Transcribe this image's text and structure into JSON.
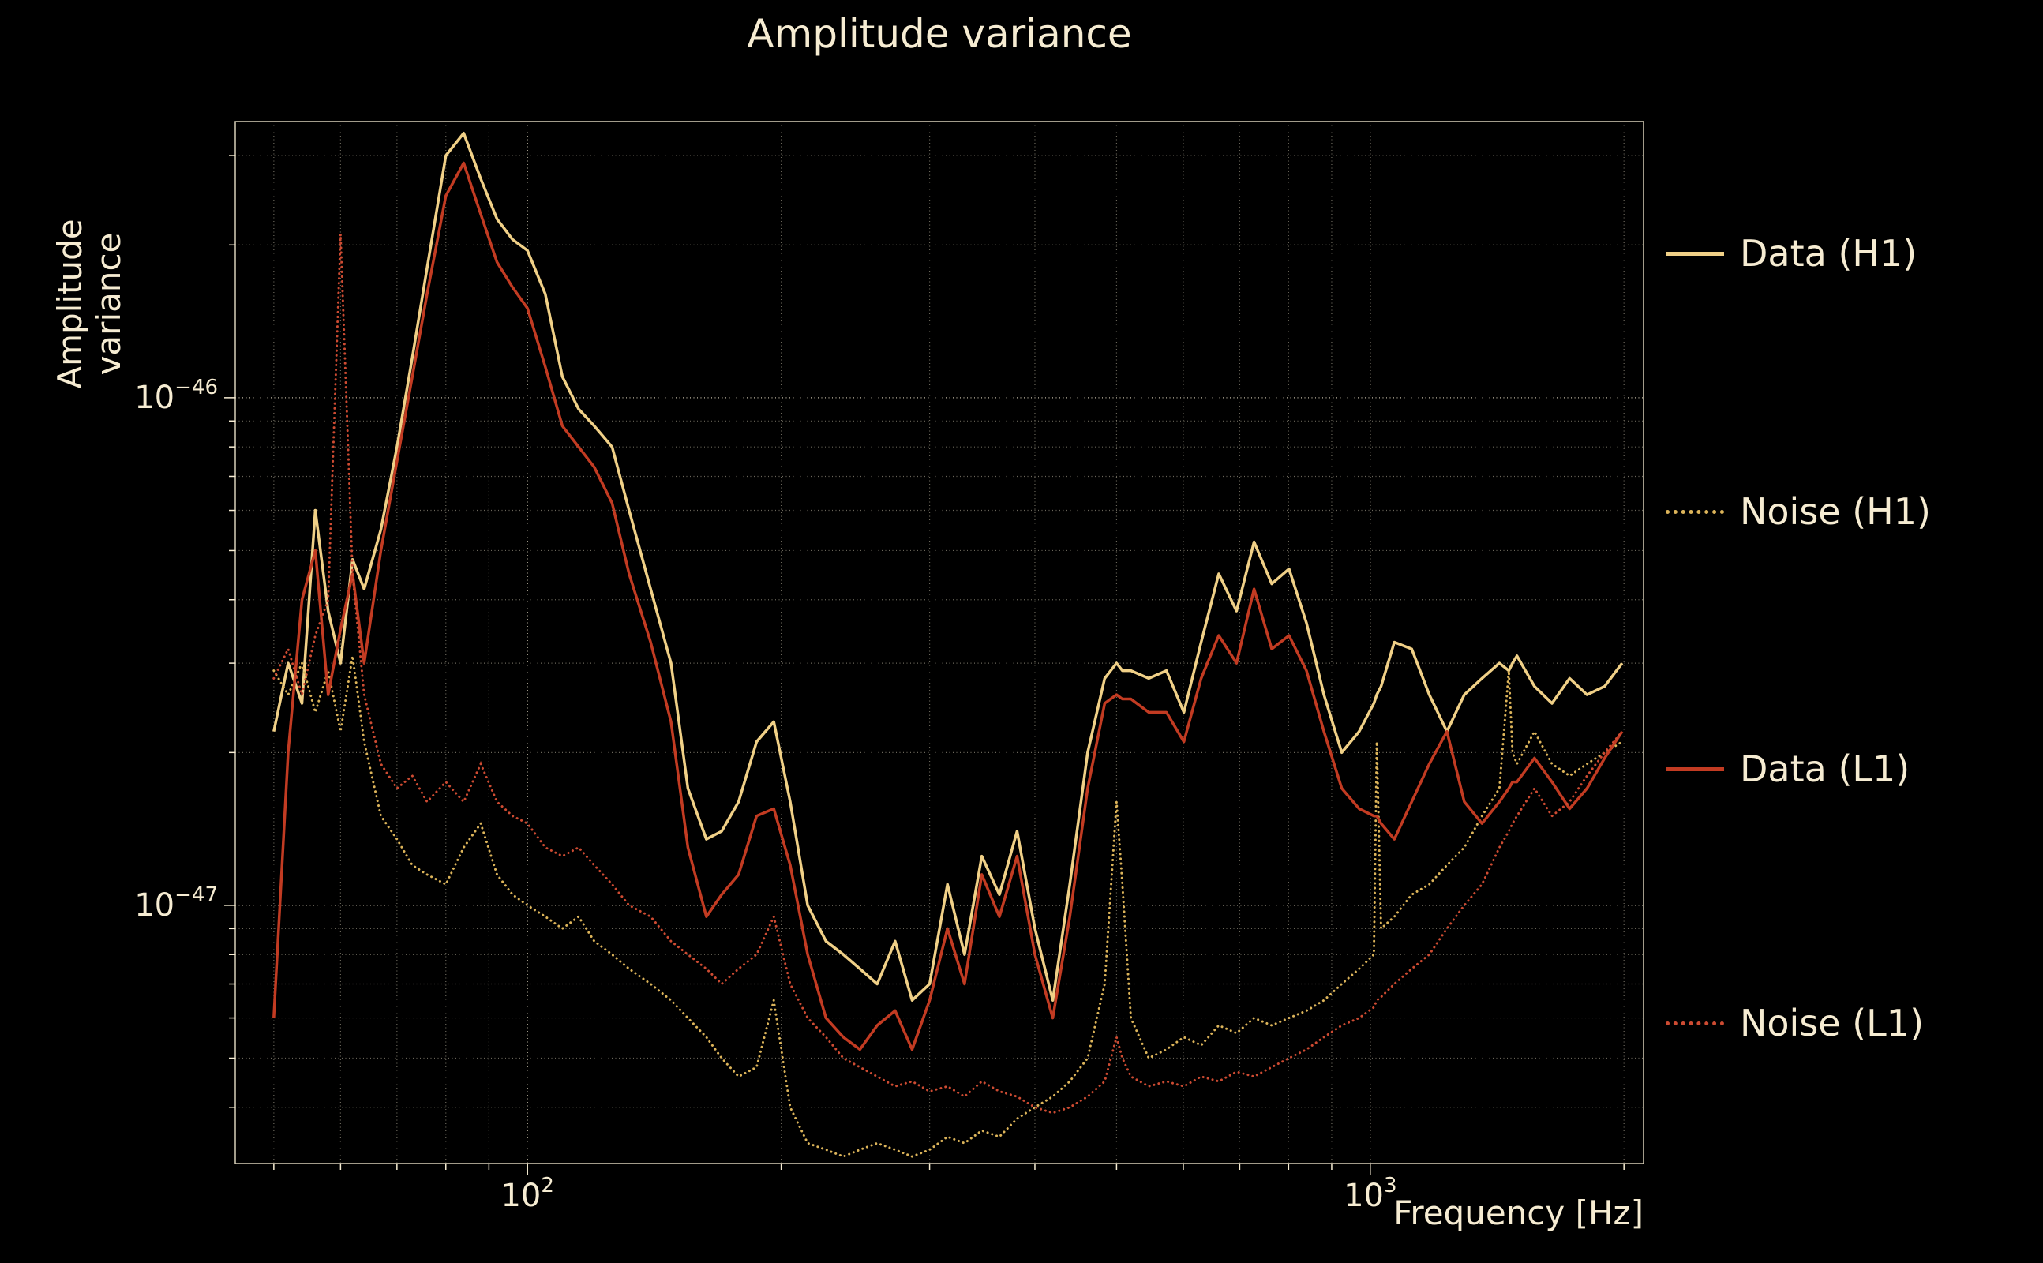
{
  "figure": {
    "background_color": "#000000",
    "text_color": "#f6ecd2",
    "grid_color": "#f0e6cd"
  },
  "chart_data": {
    "type": "line",
    "title": "Amplitude variance",
    "xlabel": "Frequency [Hz]",
    "ylabel": "Amplitude variance",
    "x_scale": "log",
    "y_scale": "log",
    "xlim": [
      45,
      2110
    ],
    "ylim": [
      3.1e-48,
      3.5e-46
    ],
    "grid": true,
    "legend_position": "right-outside",
    "x_units": "Hz",
    "xticks": [
      {
        "base": "10",
        "exp": "2",
        "value": 100
      },
      {
        "base": "10",
        "exp": "3",
        "value": 1000
      }
    ],
    "yticks": [
      {
        "base": "10",
        "exp": "−46",
        "value": 1e-46
      },
      {
        "base": "10",
        "exp": "−47",
        "value": 1e-47
      }
    ],
    "y_value_scale": 1e-48,
    "x": [
      50,
      52,
      54,
      56,
      58,
      60,
      62,
      64,
      67,
      70,
      73,
      76,
      80,
      84,
      88,
      92,
      96,
      100,
      105,
      110,
      115,
      120,
      126,
      132,
      140,
      148,
      155,
      163,
      170,
      178,
      187,
      196,
      205,
      215,
      226,
      237,
      248,
      260,
      273,
      286,
      300,
      315,
      330,
      346,
      363,
      381,
      400,
      420,
      440,
      462,
      484,
      500,
      508,
      520,
      546,
      573,
      601,
      630,
      661,
      694,
      728,
      764,
      801,
      840,
      881,
      925,
      970,
      1010,
      1018,
      1030,
      1068,
      1120,
      1175,
      1233,
      1293,
      1357,
      1423,
      1460,
      1475,
      1493,
      1566,
      1643,
      1724,
      1808,
      1897,
      1990
    ],
    "series": [
      {
        "name": "Data (H1)",
        "color": "#f0d087",
        "style": "solid",
        "values": [
          22,
          30,
          25,
          60,
          38,
          30,
          48,
          42,
          55,
          80,
          120,
          180,
          300,
          332,
          270,
          225,
          205,
          195,
          160,
          110,
          95,
          88,
          80,
          60,
          42,
          30,
          17,
          13.5,
          14,
          16,
          21,
          23,
          16,
          10,
          8.5,
          8,
          7.5,
          7,
          8.5,
          6.5,
          7,
          11,
          8,
          12.5,
          10.5,
          14,
          9,
          6.5,
          11,
          20,
          28,
          30,
          29,
          29,
          28,
          29,
          24,
          33,
          45,
          38,
          52,
          43,
          46,
          36,
          26,
          20,
          22,
          25,
          26,
          27,
          33,
          32,
          26,
          22,
          26,
          28,
          30,
          29,
          30,
          31,
          27,
          25,
          28,
          26,
          27,
          30
        ]
      },
      {
        "name": "Noise (H1)",
        "color": "#dcb45a",
        "style": "dotted",
        "values": [
          29,
          26,
          30,
          24,
          29,
          22,
          31,
          21,
          15,
          13.5,
          12,
          11.5,
          11,
          13,
          14.5,
          11.5,
          10.5,
          10,
          9.5,
          9,
          9.5,
          8.5,
          8,
          7.5,
          7,
          6.5,
          6,
          5.5,
          5,
          4.6,
          4.8,
          6.5,
          4,
          3.4,
          3.3,
          3.2,
          3.3,
          3.4,
          3.3,
          3.2,
          3.3,
          3.5,
          3.4,
          3.6,
          3.5,
          3.8,
          4,
          4.2,
          4.5,
          5,
          7,
          16,
          11,
          6,
          5,
          5.2,
          5.5,
          5.3,
          5.8,
          5.6,
          6,
          5.8,
          6,
          6.2,
          6.5,
          7,
          7.5,
          8,
          21,
          9,
          9.5,
          10.5,
          11,
          12,
          13,
          15,
          17,
          29,
          20,
          19,
          22,
          19,
          18,
          19,
          20,
          21
        ]
      },
      {
        "name": "Data (L1)",
        "color": "#c23b22",
        "style": "solid",
        "values": [
          6,
          20,
          40,
          50,
          26,
          35,
          45,
          30,
          50,
          75,
          110,
          160,
          250,
          290,
          230,
          185,
          165,
          150,
          115,
          88,
          80,
          73,
          62,
          45,
          33,
          23,
          13,
          9.5,
          10.5,
          11.5,
          15,
          15.5,
          12,
          8,
          6,
          5.5,
          5.2,
          5.8,
          6.2,
          5.2,
          6.5,
          9,
          7,
          11.5,
          9.5,
          12.5,
          8,
          6,
          9.5,
          17,
          25,
          26,
          25.5,
          25.5,
          24,
          24,
          21,
          28,
          34,
          30,
          42,
          32,
          34,
          29,
          22,
          17,
          15.5,
          15,
          15,
          14.5,
          13.5,
          16,
          19,
          22,
          16,
          14.5,
          16,
          17,
          17.5,
          17.5,
          19.5,
          17.5,
          15.5,
          17,
          19.5,
          22
        ]
      },
      {
        "name": "Noise (L1)",
        "color": "#cd4b32",
        "style": "dotted",
        "values": [
          28,
          32,
          26,
          34,
          40,
          210,
          45,
          26,
          19,
          17,
          18,
          16,
          17.5,
          16,
          19,
          16,
          15,
          14.5,
          13,
          12.5,
          13,
          12,
          11,
          10,
          9.5,
          8.5,
          8,
          7.5,
          7,
          7.5,
          8,
          9.5,
          7,
          6,
          5.5,
          5,
          4.8,
          4.6,
          4.4,
          4.5,
          4.3,
          4.4,
          4.2,
          4.5,
          4.3,
          4.2,
          4,
          3.9,
          4,
          4.2,
          4.5,
          5.5,
          5,
          4.6,
          4.4,
          4.5,
          4.4,
          4.6,
          4.5,
          4.7,
          4.6,
          4.8,
          5,
          5.2,
          5.5,
          5.8,
          6,
          6.3,
          6.5,
          6.6,
          7,
          7.5,
          8,
          9,
          10,
          11,
          13,
          14,
          14.5,
          15,
          17,
          15,
          16,
          18,
          20,
          22
        ]
      }
    ]
  }
}
